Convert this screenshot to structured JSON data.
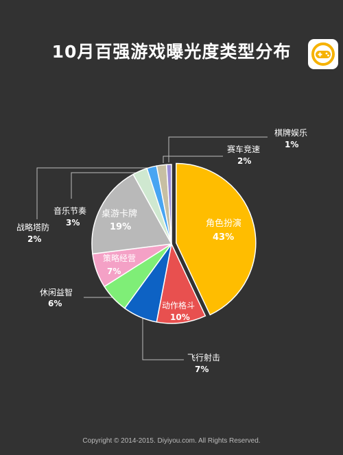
{
  "title": "10月百强游戏曝光度类型分布",
  "copyright": "Copyright © 2014-2015. Diyiyou.com. All Rights Reserved.",
  "logo": {
    "icon": "gamepad-icon",
    "colors": {
      "ring": "#f6b200",
      "pad": "#f6b200"
    }
  },
  "background_color": "#323232",
  "chart_data": {
    "type": "pie",
    "unit": "%",
    "slices": [
      {
        "name": "角色扮演",
        "value": 43,
        "label": "43%",
        "color": "#ffbd00",
        "label_inside": true
      },
      {
        "name": "动作格斗",
        "value": 10,
        "label": "10%",
        "color": "#e8504f",
        "label_inside": true
      },
      {
        "name": "飞行射击",
        "value": 7,
        "label": "7%",
        "color": "#0d62c4",
        "label_inside": false
      },
      {
        "name": "休闲益智",
        "value": 6,
        "label": "6%",
        "color": "#7fee77",
        "label_inside": false
      },
      {
        "name": "策略经营",
        "value": 7,
        "label": "7%",
        "color": "#f4a1c6",
        "label_inside": true
      },
      {
        "name": "桌游卡牌",
        "value": 19,
        "label": "19%",
        "color": "#b9b9b9",
        "label_inside": true
      },
      {
        "name": "音乐节奏",
        "value": 3,
        "label": "3%",
        "color": "#cfe8d0",
        "label_inside": false
      },
      {
        "name": "战略塔防",
        "value": 2,
        "label": "2%",
        "color": "#48a5f2",
        "label_inside": false
      },
      {
        "name": "赛车竞速",
        "value": 2,
        "label": "2%",
        "color": "#c7bfa3",
        "label_inside": false
      },
      {
        "name": "棋牌娱乐",
        "value": 1,
        "label": "1%",
        "color": "#9c8fd8",
        "label_inside": false
      }
    ],
    "exploded_slice": "角色扮演"
  }
}
